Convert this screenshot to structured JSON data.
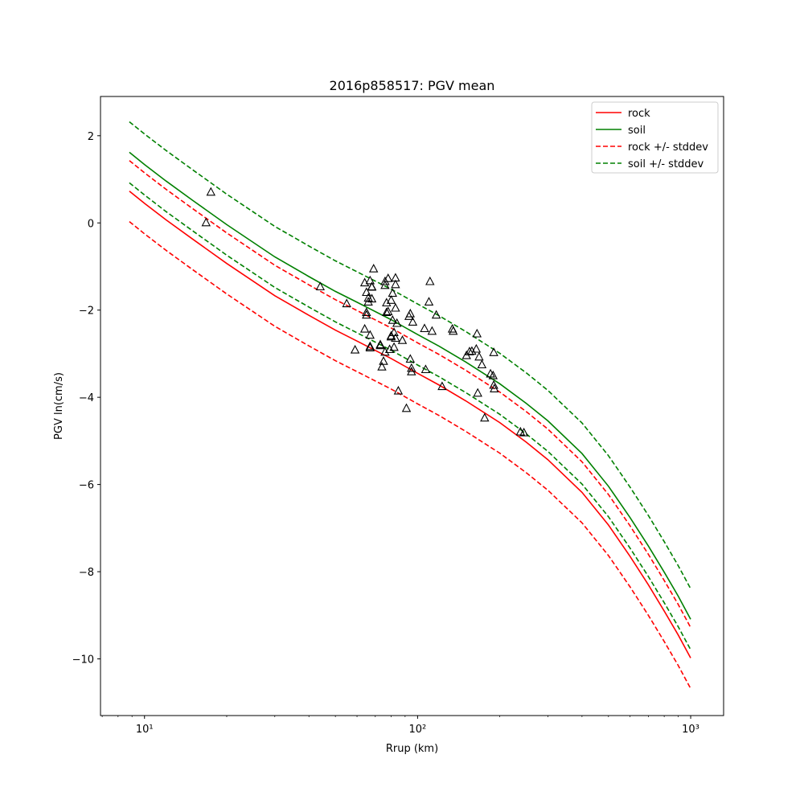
{
  "chart_data": {
    "type": "line",
    "title": "2016p858517: PGV mean",
    "xlabel": "Rrup (km)",
    "ylabel": "PGV ln(cm/s)",
    "xscale": "log",
    "xlim": [
      6.9,
      1320
    ],
    "ylim": [
      -11.3,
      2.9
    ],
    "x_ticks": [
      {
        "value": 10,
        "label": "10¹"
      },
      {
        "value": 100,
        "label": "10²"
      },
      {
        "value": 1000,
        "label": "10³"
      }
    ],
    "y_ticks": [
      {
        "value": 2,
        "label": "2"
      },
      {
        "value": 0,
        "label": "0"
      },
      {
        "value": -2,
        "label": "−2"
      },
      {
        "value": -4,
        "label": "−4"
      },
      {
        "value": -6,
        "label": "−6"
      },
      {
        "value": -8,
        "label": "−8"
      },
      {
        "value": -10,
        "label": "−10"
      }
    ],
    "grid": false,
    "legend_position": "top-right",
    "x": [
      8.8,
      10,
      12,
      15,
      20,
      30,
      40,
      50,
      60,
      80,
      100,
      120,
      150,
      200,
      250,
      300,
      400,
      500,
      600,
      700,
      800,
      900,
      1000
    ],
    "series": [
      {
        "name": "rock",
        "color": "#ff0000",
        "dash": "solid",
        "values": [
          0.73,
          0.45,
          0.07,
          -0.37,
          -0.93,
          -1.67,
          -2.12,
          -2.46,
          -2.71,
          -3.11,
          -3.45,
          -3.72,
          -4.08,
          -4.58,
          -5.03,
          -5.43,
          -6.18,
          -6.93,
          -7.65,
          -8.3,
          -8.9,
          -9.45,
          -9.98
        ]
      },
      {
        "name": "soil",
        "color": "#008000",
        "dash": "solid",
        "values": [
          1.62,
          1.34,
          0.96,
          0.52,
          -0.04,
          -0.78,
          -1.23,
          -1.57,
          -1.82,
          -2.22,
          -2.56,
          -2.83,
          -3.19,
          -3.69,
          -4.14,
          -4.54,
          -5.29,
          -6.04,
          -6.76,
          -7.41,
          -8.01,
          -8.56,
          -9.09
        ]
      },
      {
        "name": "rock +/- stddev",
        "color": "#ff0000",
        "dash": "dashed",
        "values": [
          1.43,
          1.15,
          0.77,
          0.33,
          -0.23,
          -0.97,
          -1.42,
          -1.76,
          -2.01,
          -2.41,
          -2.75,
          -3.02,
          -3.38,
          -3.88,
          -4.33,
          -4.73,
          -5.48,
          -6.23,
          -6.95,
          -7.6,
          -8.2,
          -8.75,
          -9.28
        ]
      },
      {
        "name": "",
        "color": "#ff0000",
        "dash": "dashed",
        "values": [
          0.03,
          -0.25,
          -0.63,
          -1.07,
          -1.63,
          -2.37,
          -2.82,
          -3.16,
          -3.41,
          -3.81,
          -4.15,
          -4.42,
          -4.78,
          -5.28,
          -5.73,
          -6.13,
          -6.88,
          -7.63,
          -8.35,
          -9.0,
          -9.6,
          -10.15,
          -10.68
        ]
      },
      {
        "name": "soil +/- stddev",
        "color": "#008000",
        "dash": "dashed",
        "values": [
          2.32,
          2.04,
          1.66,
          1.22,
          0.66,
          -0.08,
          -0.53,
          -0.87,
          -1.12,
          -1.52,
          -1.86,
          -2.13,
          -2.49,
          -2.99,
          -3.44,
          -3.84,
          -4.59,
          -5.34,
          -6.06,
          -6.71,
          -7.31,
          -7.86,
          -8.39
        ]
      },
      {
        "name": "",
        "color": "#008000",
        "dash": "dashed",
        "values": [
          0.92,
          0.64,
          0.26,
          -0.18,
          -0.74,
          -1.48,
          -1.93,
          -2.27,
          -2.52,
          -2.92,
          -3.26,
          -3.53,
          -3.89,
          -4.39,
          -4.84,
          -5.24,
          -5.99,
          -6.74,
          -7.46,
          -8.11,
          -8.71,
          -9.26,
          -9.79
        ]
      }
    ],
    "observations": {
      "marker": "open-triangle",
      "color": "#000000",
      "points": [
        [
          17.5,
          0.7
        ],
        [
          16.8,
          0.0
        ],
        [
          44,
          -1.47
        ],
        [
          55,
          -1.86
        ],
        [
          59,
          -2.92
        ],
        [
          64,
          -1.38
        ],
        [
          64,
          -2.44
        ],
        [
          65,
          -1.6
        ],
        [
          65,
          -2.06
        ],
        [
          65,
          -2.12
        ],
        [
          66,
          -1.73
        ],
        [
          66,
          -1.82
        ],
        [
          67,
          -1.33
        ],
        [
          67,
          -2.58
        ],
        [
          67,
          -2.84
        ],
        [
          67,
          -2.87
        ],
        [
          68,
          -1.47
        ],
        [
          68,
          -1.48
        ],
        [
          68,
          -1.75
        ],
        [
          69,
          -1.06
        ],
        [
          73,
          -2.8
        ],
        [
          73,
          -2.82
        ],
        [
          74,
          -3.31
        ],
        [
          75,
          -3.18
        ],
        [
          76,
          -1.35
        ],
        [
          76,
          -1.44
        ],
        [
          76,
          -2.97
        ],
        [
          77,
          -1.84
        ],
        [
          77,
          -2.06
        ],
        [
          78,
          -1.28
        ],
        [
          78,
          -2.04
        ],
        [
          79,
          -2.91
        ],
        [
          80,
          -1.78
        ],
        [
          80,
          -2.6
        ],
        [
          80,
          -2.62
        ],
        [
          81,
          -1.62
        ],
        [
          81,
          -2.24
        ],
        [
          82,
          -2.52
        ],
        [
          82,
          -2.86
        ],
        [
          83,
          -1.27
        ],
        [
          83,
          -1.42
        ],
        [
          83,
          -1.96
        ],
        [
          83,
          -2.65
        ],
        [
          84,
          -2.31
        ],
        [
          85,
          -3.86
        ],
        [
          88,
          -2.7
        ],
        [
          91,
          -4.26
        ],
        [
          93,
          -2.15
        ],
        [
          94,
          -2.09
        ],
        [
          94,
          -3.13
        ],
        [
          95,
          -3.42
        ],
        [
          95,
          -3.34
        ],
        [
          96,
          -2.28
        ],
        [
          106,
          -2.43
        ],
        [
          107,
          -3.37
        ],
        [
          110,
          -1.82
        ],
        [
          111,
          -1.35
        ],
        [
          113,
          -2.49
        ],
        [
          117,
          -2.12
        ],
        [
          123,
          -3.76
        ],
        [
          134,
          -2.44
        ],
        [
          135,
          -2.49
        ],
        [
          151,
          -3.05
        ],
        [
          155,
          -2.96
        ],
        [
          158,
          -2.95
        ],
        [
          164,
          -2.9
        ],
        [
          165,
          -2.55
        ],
        [
          166,
          -3.91
        ],
        [
          168,
          -3.08
        ],
        [
          172,
          -3.26
        ],
        [
          176,
          -4.48
        ],
        [
          185,
          -3.47
        ],
        [
          189,
          -3.51
        ],
        [
          190,
          -2.98
        ],
        [
          190,
          -3.73
        ],
        [
          191,
          -3.81
        ],
        [
          238,
          -4.8
        ],
        [
          245,
          -4.82
        ]
      ]
    }
  }
}
